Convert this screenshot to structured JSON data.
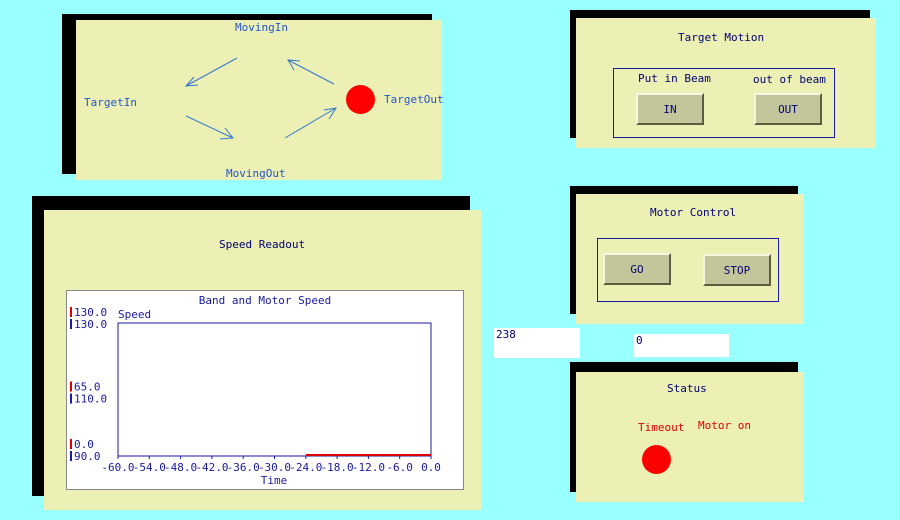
{
  "state_panel": {
    "states": {
      "moving_in": "MovingIn",
      "target_in": "TargetIn",
      "moving_out": "MovingOut",
      "target_out": "TargetOut"
    },
    "indicator_color": "#ff0000"
  },
  "target_motion": {
    "title": "Target  Motion",
    "put_in_label": "Put in Beam",
    "out_label": "out of beam",
    "in_button": "IN",
    "out_button": "OUT"
  },
  "motor_control": {
    "title": "Motor Control",
    "go_button": "GO",
    "stop_button": "STOP"
  },
  "readouts": {
    "value_left": "238",
    "value_right": "0"
  },
  "status": {
    "title": "Status",
    "timeout_label": "Timeout",
    "motor_on_label": "Motor on",
    "indicator_color": "#ff0000"
  },
  "speed_readout": {
    "title": "Speed Readout"
  },
  "chart_data": {
    "type": "line",
    "title": "Band and Motor Speed",
    "ylabel": "Speed",
    "xlabel": "Time",
    "xlim": [
      -60,
      0
    ],
    "x_ticks": [
      -60,
      -54,
      -48,
      -42,
      -36,
      -30,
      -24,
      -18,
      -12,
      -6,
      0
    ],
    "x_tick_labels": [
      "-60.0",
      "-54.0",
      "-48.0",
      "-42.0",
      "-36.0",
      "-30.0",
      "-24.0",
      "-18.0",
      "-12.0",
      "-6.0",
      "0.0"
    ],
    "axes": [
      {
        "color": "#dd0000",
        "ylim": [
          0,
          130
        ],
        "tick_labels": [
          "130.0",
          "65.0",
          "0.0"
        ]
      },
      {
        "color": "#1a1aa0",
        "ylim": [
          90,
          130
        ],
        "tick_labels": [
          "130.0",
          "110.0",
          "90.0"
        ]
      }
    ],
    "series": [
      {
        "color": "#dd0000",
        "x": [
          -24,
          0
        ],
        "y": [
          0,
          0
        ]
      }
    ],
    "grid": false
  }
}
